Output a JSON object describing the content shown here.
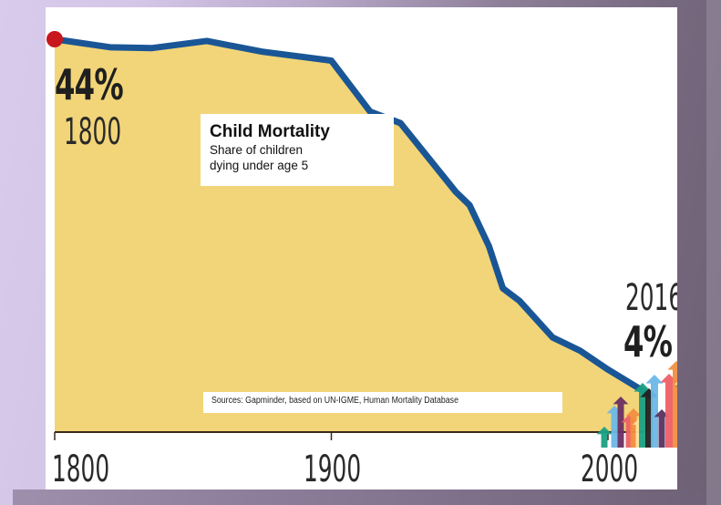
{
  "chart_data": {
    "type": "area",
    "title": "Child Mortality",
    "subtitle_lines": [
      "Share of children",
      "dying under age 5"
    ],
    "source": "Sources: Gapminder, based on UN-IGME, Human Mortality Database",
    "xlabel": "",
    "ylabel": "",
    "xlim": [
      1800,
      2016
    ],
    "ylim": [
      0,
      44
    ],
    "x_ticks": [
      1800,
      1900,
      2000
    ],
    "x_tick_labels": [
      "1800",
      "1900",
      "2000"
    ],
    "grid": false,
    "series": [
      {
        "name": "Share of children dying under age 5 (%)",
        "x": [
          1800,
          1820,
          1835,
          1855,
          1875,
          1900,
          1914,
          1925,
          1945,
          1950,
          1957,
          1962,
          1968,
          1980,
          1990,
          2000,
          2016
        ],
        "values": [
          44,
          43.1,
          43.0,
          43.8,
          42.6,
          41.6,
          35.9,
          34.6,
          26.9,
          25.4,
          20.8,
          16.1,
          14.7,
          10.6,
          9.1,
          7.0,
          4.0
        ]
      }
    ],
    "annotations": [
      {
        "year": "1800",
        "value": "44%"
      },
      {
        "year": "2016",
        "value": "4%"
      }
    ],
    "colors": {
      "area_fill": "#f2d578",
      "line": "#1a5696",
      "start_marker": "#c8161d",
      "axis": "#3a2a1a"
    }
  },
  "labels": {
    "start_value": "44%",
    "start_year": "1800",
    "end_year": "2016",
    "end_value": "4%"
  },
  "decoration": {
    "icon": "rising-arrows-icon",
    "arrow_colors": [
      "#1aa083",
      "#6bb8e8",
      "#6a2f62",
      "#ee5f66",
      "#f28e3f",
      "#f8e39a",
      "#1aa083",
      "#222222",
      "#6bb8e8",
      "#5a3160",
      "#ee5f66",
      "#f28e3f",
      "#fbe9a5",
      "#1aa083"
    ]
  }
}
